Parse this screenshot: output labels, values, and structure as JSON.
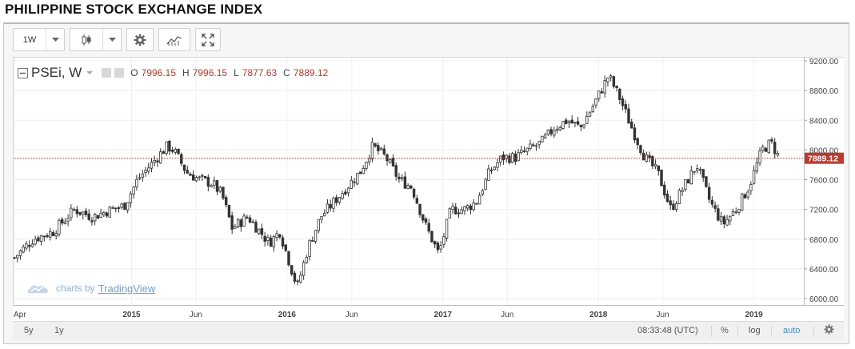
{
  "page": {
    "title": "PHILIPPINE STOCK EXCHANGE INDEX"
  },
  "toolbar": {
    "interval": "1W"
  },
  "legend": {
    "symbol": "PSEi, W",
    "o_label": "O",
    "o_value": "7996.15",
    "h_label": "H",
    "h_value": "7996.15",
    "l_label": "L",
    "l_value": "7877.63",
    "c_label": "C",
    "c_value": "7889.12"
  },
  "watermark": {
    "prefix": "charts by",
    "brand": "TradingView"
  },
  "bottom": {
    "range_5y": "5y",
    "range_1y": "1y",
    "clock": "08:33:48 (UTC)",
    "percent": "%",
    "log": "log",
    "auto": "auto"
  },
  "colors": {
    "up": "#53b987",
    "down": "#eb4d5c",
    "candle_body": "#ffffff",
    "wick": "#333333",
    "last_price": "#c0392b",
    "auto_active": "#3b8fd6"
  },
  "chart_data": {
    "type": "candlestick",
    "title": "",
    "series": "PSEi, W",
    "ylim": [
      5900,
      9250
    ],
    "y_ticks": [
      6000,
      6400,
      6800,
      7200,
      7600,
      8000,
      8400,
      8800,
      9200
    ],
    "y_tick_labels": [
      "6000.00",
      "6400.00",
      "6800.00",
      "7200.00",
      "7600.00",
      "8000.00",
      "8400.00",
      "8800.00",
      "9200.00"
    ],
    "x_range": [
      "2014-04-01",
      "2019-03-31"
    ],
    "x_ticks": [
      {
        "date": "2014-04-01",
        "label": "Apr"
      },
      {
        "date": "2015-01-01",
        "label": "2015"
      },
      {
        "date": "2015-06-01",
        "label": "Jun"
      },
      {
        "date": "2016-01-01",
        "label": "2016"
      },
      {
        "date": "2016-06-01",
        "label": "Jun"
      },
      {
        "date": "2017-01-01",
        "label": "2017"
      },
      {
        "date": "2017-06-01",
        "label": "Jun"
      },
      {
        "date": "2018-01-01",
        "label": "2018"
      },
      {
        "date": "2018-06-01",
        "label": "Jun"
      },
      {
        "date": "2019-01-01",
        "label": "2019"
      }
    ],
    "last_price": 7889.12,
    "last_price_label": "7889.12",
    "close_path": [
      [
        "2014-04-01",
        6550
      ],
      [
        "2014-05-15",
        6800
      ],
      [
        "2014-07-01",
        6900
      ],
      [
        "2014-08-20",
        7200
      ],
      [
        "2014-10-01",
        7100
      ],
      [
        "2014-11-15",
        7200
      ],
      [
        "2014-12-15",
        7250
      ],
      [
        "2015-01-15",
        7600
      ],
      [
        "2015-02-15",
        7800
      ],
      [
        "2015-03-25",
        8050
      ],
      [
        "2015-04-10",
        8000
      ],
      [
        "2015-05-10",
        7700
      ],
      [
        "2015-06-10",
        7600
      ],
      [
        "2015-07-10",
        7550
      ],
      [
        "2015-08-01",
        7400
      ],
      [
        "2015-08-25",
        6950
      ],
      [
        "2015-10-01",
        7100
      ],
      [
        "2015-11-20",
        6750
      ],
      [
        "2015-12-15",
        6900
      ],
      [
        "2016-01-25",
        6150
      ],
      [
        "2016-02-20",
        6700
      ],
      [
        "2016-03-20",
        7100
      ],
      [
        "2016-04-20",
        7300
      ],
      [
        "2016-05-20",
        7500
      ],
      [
        "2016-06-20",
        7700
      ],
      [
        "2016-07-20",
        8050
      ],
      [
        "2016-08-20",
        7900
      ],
      [
        "2016-09-20",
        7600
      ],
      [
        "2016-10-20",
        7500
      ],
      [
        "2016-11-20",
        7000
      ],
      [
        "2016-12-22",
        6600
      ],
      [
        "2017-01-20",
        7200
      ],
      [
        "2017-02-20",
        7200
      ],
      [
        "2017-03-20",
        7300
      ],
      [
        "2017-04-20",
        7700
      ],
      [
        "2017-05-20",
        7900
      ],
      [
        "2017-06-20",
        7900
      ],
      [
        "2017-07-20",
        8000
      ],
      [
        "2017-08-20",
        8100
      ],
      [
        "2017-09-20",
        8300
      ],
      [
        "2017-10-20",
        8400
      ],
      [
        "2017-11-20",
        8300
      ],
      [
        "2017-12-20",
        8600
      ],
      [
        "2018-01-25",
        9000
      ],
      [
        "2018-02-20",
        8700
      ],
      [
        "2018-03-20",
        8300
      ],
      [
        "2018-04-20",
        7900
      ],
      [
        "2018-05-20",
        7700
      ],
      [
        "2018-06-20",
        7200
      ],
      [
        "2018-07-20",
        7500
      ],
      [
        "2018-08-20",
        7800
      ],
      [
        "2018-09-20",
        7300
      ],
      [
        "2018-10-20",
        7000
      ],
      [
        "2018-11-20",
        7200
      ],
      [
        "2018-12-20",
        7500
      ],
      [
        "2019-01-20",
        8000
      ],
      [
        "2019-02-10",
        8100
      ],
      [
        "2019-03-01",
        7900
      ]
    ]
  }
}
